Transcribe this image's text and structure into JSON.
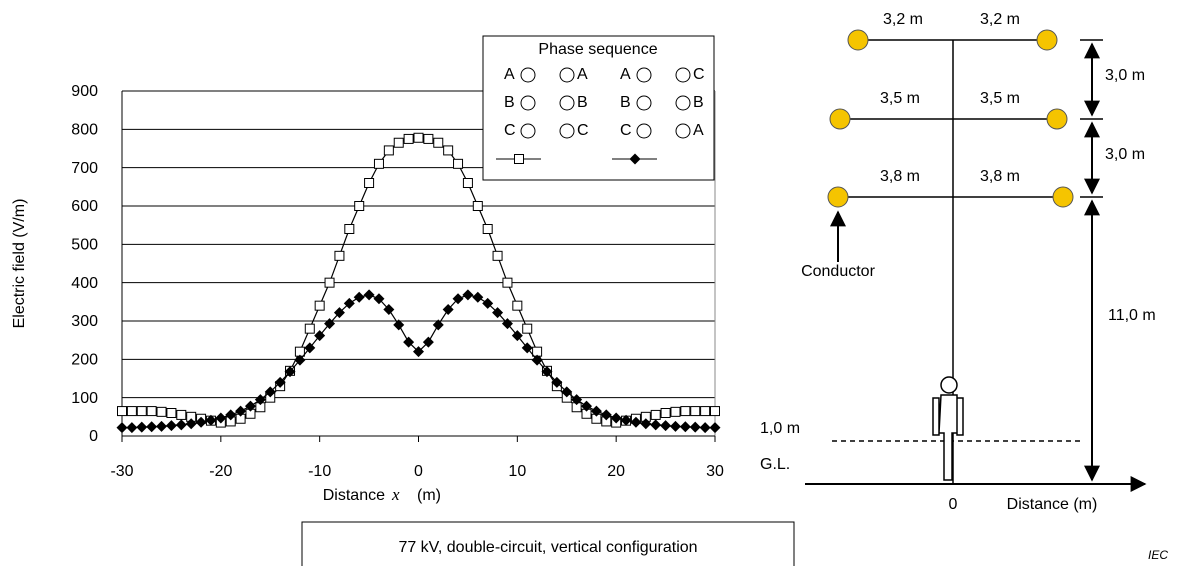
{
  "chart_data": {
    "type": "line",
    "ylabel": "Electric field   (V/m)",
    "xlabel": [
      "Distance",
      "x",
      "(m)"
    ],
    "x": [
      -30,
      -29,
      -28,
      -27,
      -26,
      -25,
      -24,
      -23,
      -22,
      -21,
      -20,
      -19,
      -18,
      -17,
      -16,
      -15,
      -14,
      -13,
      -12,
      -11,
      -10,
      -9,
      -8,
      -7,
      -6,
      -5,
      -4,
      -3,
      -2,
      -1,
      0,
      1,
      2,
      3,
      4,
      5,
      6,
      7,
      8,
      9,
      10,
      11,
      12,
      13,
      14,
      15,
      16,
      17,
      18,
      19,
      20,
      21,
      22,
      23,
      24,
      25,
      26,
      27,
      28,
      29,
      30
    ],
    "xlim": [
      -30,
      30
    ],
    "xticks": [
      -30,
      -20,
      -10,
      0,
      10,
      20,
      30
    ],
    "ylim": [
      0,
      900
    ],
    "yticks": [
      0,
      100,
      200,
      300,
      400,
      500,
      600,
      700,
      800,
      900
    ],
    "grid": true,
    "legend_title": "Phase sequence",
    "series": [
      {
        "marker": "square",
        "color": "#000000",
        "phases_left": [
          "A",
          "B",
          "C"
        ],
        "phases_right": [
          "A",
          "B",
          "C"
        ],
        "values": [
          65,
          65,
          65,
          65,
          63,
          60,
          55,
          50,
          45,
          40,
          35,
          38,
          45,
          58,
          75,
          100,
          130,
          170,
          220,
          280,
          340,
          400,
          470,
          540,
          600,
          660,
          710,
          745,
          765,
          775,
          778,
          775,
          765,
          745,
          710,
          660,
          600,
          540,
          470,
          400,
          340,
          280,
          220,
          170,
          130,
          100,
          75,
          58,
          45,
          38,
          35,
          40,
          45,
          50,
          55,
          60,
          63,
          65,
          65,
          65,
          65
        ]
      },
      {
        "marker": "diamond",
        "color": "#000000",
        "phases_left": [
          "A",
          "B",
          "C"
        ],
        "phases_right": [
          "C",
          "B",
          "A"
        ],
        "values": [
          22,
          22,
          23,
          24,
          25,
          27,
          29,
          32,
          36,
          41,
          47,
          55,
          65,
          78,
          95,
          115,
          140,
          168,
          198,
          230,
          262,
          293,
          322,
          346,
          362,
          368,
          358,
          330,
          290,
          245,
          220,
          245,
          290,
          330,
          358,
          368,
          362,
          346,
          322,
          293,
          262,
          230,
          198,
          168,
          140,
          115,
          95,
          78,
          65,
          55,
          47,
          41,
          36,
          32,
          29,
          27,
          25,
          24,
          23,
          22,
          22
        ]
      }
    ],
    "caption": "77 kV, double-circuit, vertical configuration"
  },
  "diagram": {
    "spans": [
      "3,2 m",
      "3,2 m",
      "3,5 m",
      "3,5 m",
      "3,8 m",
      "3,8 m"
    ],
    "vertical": [
      "3,0 m",
      "3,0 m",
      "11,0 m"
    ],
    "conductor": "Conductor",
    "height": "1,0 m",
    "ground": "G.L.",
    "origin": "0",
    "axis": "Distance (m)"
  },
  "credit": "IEC"
}
